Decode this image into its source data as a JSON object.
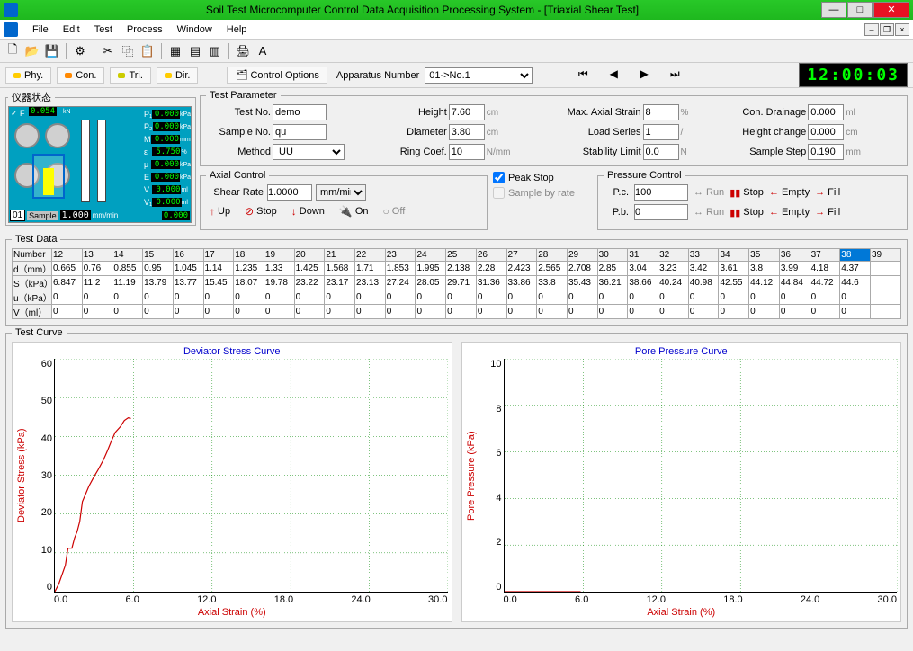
{
  "window": {
    "title": "Soil Test Microcomputer Control Data Acquisition Processing System - [Triaxial Shear Test]"
  },
  "menu": [
    "File",
    "Edit",
    "Test",
    "Process",
    "Window",
    "Help"
  ],
  "tabs": {
    "phy": "Phy.",
    "con": "Con.",
    "tri": "Tri.",
    "dir": "Dir.",
    "ctrlopt": "Control Options",
    "applabel": "Apparatus Number",
    "appval": "01->No.1"
  },
  "clock": "12:00:03",
  "instrument": {
    "legend": "仪器状态",
    "F": "0.054",
    "readouts": [
      {
        "l": "P₁",
        "v": "0.000",
        "u": "kPa"
      },
      {
        "l": "P₂",
        "v": "0.000",
        "u": "kPa"
      },
      {
        "l": "M",
        "v": "0.000",
        "u": "mm"
      },
      {
        "l": "ε",
        "v": "5.750",
        "u": "%"
      },
      {
        "l": "μ",
        "v": "0.000",
        "u": "kPa"
      },
      {
        "l": "E",
        "v": "0.000",
        "u": "kPa"
      },
      {
        "l": "V",
        "v": "0.000",
        "u": "ml"
      },
      {
        "l": "V₁",
        "v": "0.000",
        "u": "ml"
      }
    ],
    "num": "01",
    "slabel": "Sample",
    "sval": "1.000",
    "sunit": "mm/min"
  },
  "params": {
    "legend": "Test Parameter",
    "testno": {
      "l": "Test No.",
      "v": "demo"
    },
    "height": {
      "l": "Height",
      "v": "7.60",
      "u": "cm"
    },
    "maxstrain": {
      "l": "Max. Axial Strain",
      "v": "8",
      "u": "%"
    },
    "drainage": {
      "l": "Con. Drainage",
      "v": "0.000",
      "u": "ml"
    },
    "sampleno": {
      "l": "Sample No.",
      "v": "qu"
    },
    "diameter": {
      "l": "Diameter",
      "v": "3.80",
      "u": "cm"
    },
    "loadseries": {
      "l": "Load Series",
      "v": "1",
      "u": "/"
    },
    "heightchg": {
      "l": "Height change",
      "v": "0.000",
      "u": "cm"
    },
    "method": {
      "l": "Method",
      "v": "UU"
    },
    "ringcoef": {
      "l": "Ring Coef.",
      "v": "10",
      "u": "N/mm"
    },
    "stability": {
      "l": "Stability Limit",
      "v": "0.0",
      "u": "N"
    },
    "samplestep": {
      "l": "Sample Step",
      "v": "0.190",
      "u": "mm"
    }
  },
  "axial": {
    "legend": "Axial Control",
    "shearrate": {
      "l": "Shear Rate",
      "v": "1.0000",
      "u": "mm/min"
    },
    "up": "Up",
    "stop": "Stop",
    "down": "Down",
    "on": "On",
    "off": "Off"
  },
  "peak": {
    "peakstop": "Peak Stop",
    "samplebyrate": "Sample by rate"
  },
  "pressure": {
    "legend": "Pressure Control",
    "pc": {
      "l": "P.c.",
      "v": "100"
    },
    "pb": {
      "l": "P.b.",
      "v": "0"
    },
    "run": "Run",
    "stop": "Stop",
    "empty": "Empty",
    "fill": "Fill"
  },
  "testdata": {
    "legend": "Test Data",
    "selected_col": 38,
    "cols": [
      12,
      13,
      14,
      15,
      16,
      17,
      18,
      19,
      20,
      21,
      22,
      23,
      24,
      25,
      26,
      27,
      28,
      29,
      30,
      31,
      32,
      33,
      34,
      35,
      36,
      37,
      38,
      39
    ],
    "rows": [
      {
        "h": "d（mm）",
        "v": [
          0.665,
          0.76,
          0.855,
          0.95,
          1.045,
          1.14,
          1.235,
          1.33,
          1.425,
          1.568,
          1.71,
          1.853,
          1.995,
          2.138,
          2.28,
          2.423,
          2.565,
          2.708,
          2.85,
          3.04,
          3.23,
          3.42,
          3.61,
          3.8,
          3.99,
          4.18,
          4.37,
          null
        ]
      },
      {
        "h": "S（kPa）",
        "v": [
          6.847,
          11.2,
          11.19,
          13.79,
          13.77,
          15.45,
          18.07,
          19.78,
          23.22,
          23.17,
          23.13,
          27.24,
          28.05,
          29.71,
          31.36,
          33.86,
          33.8,
          35.43,
          36.21,
          38.66,
          40.24,
          40.98,
          42.55,
          44.12,
          44.84,
          44.72,
          44.6,
          null
        ]
      },
      {
        "h": "u（kPa）",
        "v": [
          0.0,
          0.0,
          0.0,
          0.0,
          0.0,
          0.0,
          0.0,
          0.0,
          0.0,
          0.0,
          0.0,
          0.0,
          0.0,
          0.0,
          0.0,
          0.0,
          0.0,
          0.0,
          0.0,
          0.0,
          0.0,
          0.0,
          0.0,
          0.0,
          0.0,
          0.0,
          0.0,
          null
        ]
      },
      {
        "h": "V（ml）",
        "v": [
          0.0,
          0.0,
          0.0,
          0.0,
          0.0,
          0.0,
          0.0,
          0.0,
          0.0,
          0.0,
          0.0,
          0.0,
          0.0,
          0.0,
          0.0,
          0.0,
          0.0,
          0.0,
          0.0,
          0.0,
          0.0,
          0.0,
          0.0,
          0.0,
          0.0,
          0.0,
          0.0,
          null
        ]
      }
    ]
  },
  "curves": {
    "legend": "Test Curve",
    "left": {
      "title": "Deviator Stress Curve",
      "ylabel": "Deviator Stress (kPa)",
      "xlabel": "Axial Strain (%)",
      "xlim": [
        0,
        30
      ],
      "xtick": 6,
      "ylim": [
        0,
        60
      ],
      "ytick": 10,
      "line_color": "#cc0000",
      "data": [
        [
          0,
          0
        ],
        [
          0.3,
          2
        ],
        [
          0.8,
          6.8
        ],
        [
          1,
          11.2
        ],
        [
          1.3,
          11.2
        ],
        [
          1.5,
          13.8
        ],
        [
          1.7,
          15.5
        ],
        [
          1.9,
          18.1
        ],
        [
          2.1,
          23.2
        ],
        [
          2.6,
          27.2
        ],
        [
          3,
          29.7
        ],
        [
          3.3,
          31.4
        ],
        [
          3.7,
          33.9
        ],
        [
          4.0,
          36.2
        ],
        [
          4.3,
          38.7
        ],
        [
          4.6,
          41.0
        ],
        [
          5.0,
          42.5
        ],
        [
          5.3,
          44.1
        ],
        [
          5.6,
          44.8
        ],
        [
          5.8,
          44.6
        ]
      ]
    },
    "right": {
      "title": "Pore Pressure Curve",
      "ylabel": "Pore Pressure (kPa)",
      "xlabel": "Axial Strain (%)",
      "xlim": [
        0,
        30
      ],
      "xtick": 6,
      "ylim": [
        0,
        10
      ],
      "ytick": 2,
      "line_color": "#cc0000",
      "data": [
        [
          0,
          0
        ],
        [
          5.8,
          0
        ]
      ]
    },
    "grid_color": "#008800",
    "background": "#ffffff"
  }
}
